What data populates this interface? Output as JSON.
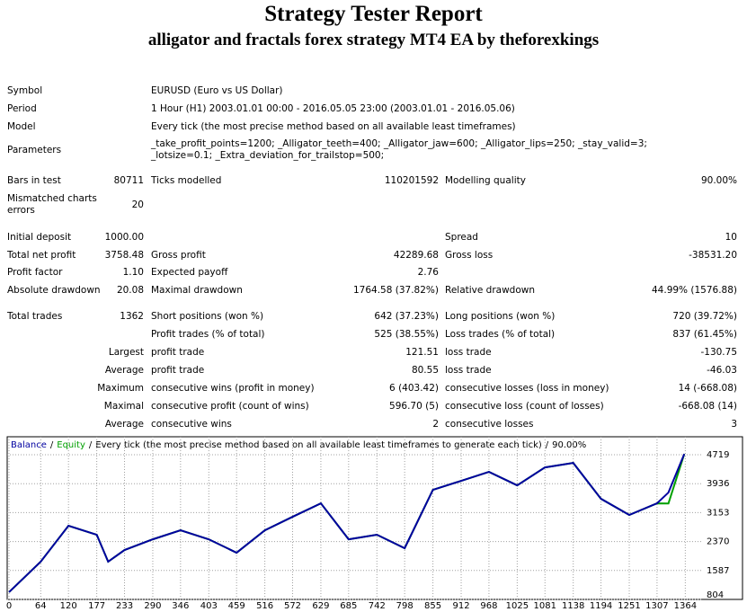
{
  "header": {
    "title": "Strategy Tester Report",
    "subtitle": "alligator and fractals forex strategy MT4 EA by theforexkings"
  },
  "table": {
    "rows": [
      [
        "Symbol",
        "EURUSD (Euro vs US Dollar)"
      ],
      [
        "Period",
        "1 Hour (H1) 2003.01.01 00:00 - 2016.05.05 23:00 (2003.01.01 - 2016.05.06)"
      ],
      [
        "Model",
        "Every tick (the most precise method based on all available least timeframes)"
      ],
      [
        "Parameters",
        "_take_profit_points=1200; _Alligator_teeth=400; _Alligator_jaw=600; _Alligator_lips=250; _stay_valid=3; _lotsize=0.1; _Extra_deviation_for_trailstop=500;"
      ],
      [
        "Bars in test",
        "80711",
        "Ticks modelled",
        "110201592",
        "Modelling quality",
        "90.00%"
      ],
      [
        "Mismatched charts errors",
        "20"
      ],
      [
        "Initial deposit",
        "1000.00",
        "Spread",
        "10"
      ],
      [
        "Total net profit",
        "3758.48",
        "Gross profit",
        "42289.68",
        "Gross loss",
        "-38531.20"
      ],
      [
        "Profit factor",
        "1.10",
        "Expected payoff",
        "2.76"
      ],
      [
        "Absolute drawdown",
        "20.08",
        "Maximal drawdown",
        "1764.58 (37.82%)",
        "Relative drawdown",
        "44.99% (1576.88)"
      ],
      [
        "Total trades",
        "1362",
        "Short positions (won %)",
        "642 (37.23%)",
        "Long positions (won %)",
        "720 (39.72%)"
      ],
      [
        "Profit trades (% of total)",
        "525 (38.55%)",
        "Loss trades (% of total)",
        "837 (61.45%)"
      ],
      [
        "Largest",
        "profit trade",
        "121.51",
        "loss trade",
        "-130.75"
      ],
      [
        "Average",
        "profit trade",
        "80.55",
        "loss trade",
        "-46.03"
      ],
      [
        "Maximum",
        "consecutive wins (profit in money)",
        "6 (403.42)",
        "consecutive losses (loss in money)",
        "14 (-668.08)"
      ],
      [
        "Maximal",
        "consecutive profit (count of wins)",
        "596.70 (5)",
        "consecutive loss (count of losses)",
        "-668.08 (14)"
      ],
      [
        "Average",
        "consecutive wins",
        "2",
        "consecutive losses",
        "3"
      ]
    ]
  },
  "chart_data": {
    "type": "line",
    "separator": "/",
    "subtitle": "Every tick (the most precise method based on all available least timeframes to generate each tick)",
    "quality": "90.00%",
    "x": [
      0,
      64,
      120,
      177,
      200,
      233,
      290,
      346,
      403,
      459,
      516,
      572,
      629,
      685,
      742,
      798,
      855,
      912,
      968,
      1025,
      1081,
      1138,
      1194,
      1251,
      1307,
      1330,
      1362
    ],
    "series": [
      {
        "name": "Equity",
        "color": "#00a000",
        "values": [
          1000,
          1825,
          2797,
          2554,
          1825,
          2140,
          2430,
          2675,
          2430,
          2068,
          2675,
          3040,
          3404,
          2430,
          2554,
          2190,
          3770,
          4012,
          4255,
          3890,
          4376,
          4497,
          3526,
          3089,
          3404,
          3400,
          4740
        ]
      },
      {
        "name": "Balance",
        "color": "#0000a0",
        "values": [
          1000,
          1825,
          2797,
          2554,
          1825,
          2140,
          2430,
          2675,
          2430,
          2068,
          2675,
          3040,
          3404,
          2430,
          2554,
          2190,
          3770,
          4012,
          4255,
          3890,
          4376,
          4497,
          3526,
          3089,
          3404,
          3696,
          4740
        ]
      }
    ],
    "xlim": [
      0,
      1396
    ],
    "ylim": [
      804,
      5205
    ],
    "xticks": [
      0,
      64,
      120,
      177,
      233,
      290,
      346,
      403,
      459,
      516,
      572,
      629,
      685,
      742,
      798,
      855,
      912,
      968,
      1025,
      1081,
      1138,
      1194,
      1251,
      1307,
      1364
    ],
    "yticks": [
      804,
      1587,
      2370,
      3153,
      3936,
      4719
    ],
    "grid": true
  }
}
